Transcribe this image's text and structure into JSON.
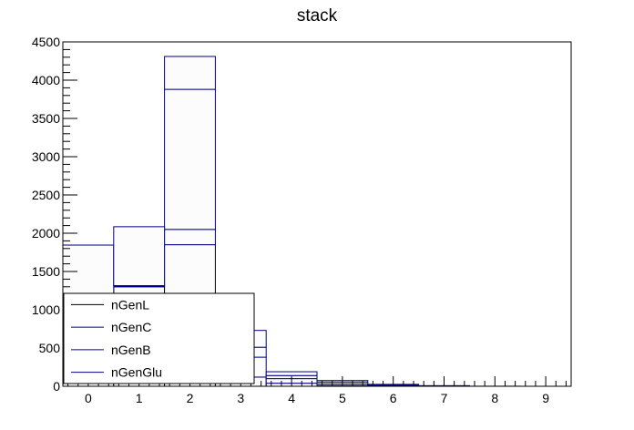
{
  "chart_data": {
    "type": "bar",
    "style": "stacked-step-histogram",
    "title": "stack",
    "xlabel": "",
    "ylabel": "",
    "xlim": [
      -0.5,
      9.5
    ],
    "ylim": [
      0,
      4500
    ],
    "x_ticks": [
      "0",
      "1",
      "2",
      "3",
      "4",
      "5",
      "6",
      "7",
      "8",
      "9"
    ],
    "y_ticks": [
      "0",
      "500",
      "1000",
      "1500",
      "2000",
      "2500",
      "3000",
      "3500",
      "4000",
      "4500"
    ],
    "categories": [
      "0",
      "1",
      "2",
      "3",
      "4",
      "5",
      "6",
      "7",
      "8",
      "9"
    ],
    "series": [
      {
        "name": "nGenL",
        "color": "#000000",
        "values": [
          850,
          1300,
          1850,
          120,
          40,
          10,
          3,
          1,
          0,
          0
        ]
      },
      {
        "name": "nGenC",
        "color": "#000080",
        "values": [
          10,
          10,
          200,
          260,
          60,
          20,
          8,
          2,
          0,
          0
        ]
      },
      {
        "name": "nGenB",
        "color": "#0000a0",
        "values": [
          5,
          5,
          1830,
          130,
          40,
          25,
          8,
          3,
          1,
          0
        ]
      },
      {
        "name": "nGenGlu",
        "color": "#000080",
        "values": [
          980,
          770,
          430,
          220,
          50,
          20,
          6,
          2,
          0,
          0
        ]
      }
    ],
    "grid": false,
    "legend": {
      "placement": "bottom-left",
      "entries": [
        "nGenL",
        "nGenC",
        "nGenB",
        "nGenGlu"
      ]
    }
  }
}
